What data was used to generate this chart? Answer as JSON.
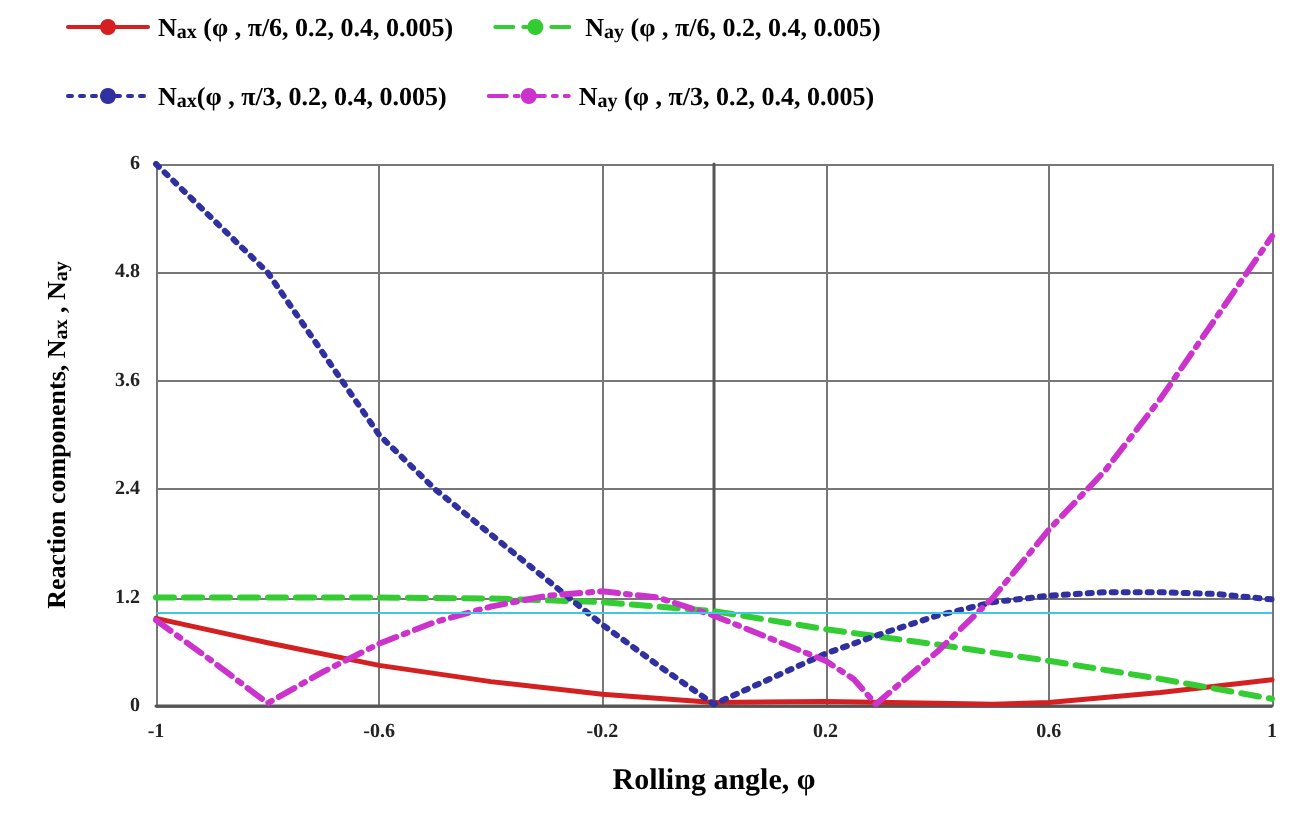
{
  "chart_data": {
    "type": "line",
    "xlabel": "Rolling angle, φ",
    "ylabel": "Reaction components, N$_{ax}$ , N$_{ay}$",
    "xlim": [
      -1,
      1
    ],
    "xticks": [
      -1,
      -0.6,
      -0.2,
      0.2,
      0.6,
      1
    ],
    "ylim": [
      0,
      6
    ],
    "yticks": [
      0,
      1.2,
      2.4,
      3.6,
      4.8,
      6
    ],
    "grid": true,
    "legend": "top",
    "marker": "none",
    "ref_lines": [
      {
        "axis": "y",
        "value": 1.03,
        "color": "#40c8e0"
      }
    ],
    "series": [
      {
        "name": "N$_{ax}$ (φ , π/6, 0.2, 0.4, 0.005)",
        "color": "#d42020",
        "line_style": "solid",
        "x": [
          -1,
          -0.8,
          -0.6,
          -0.4,
          -0.2,
          0,
          0.2,
          0.4,
          0.5,
          0.6,
          0.8,
          1
        ],
        "values": [
          0.97,
          0.7,
          0.45,
          0.27,
          0.13,
          0.04,
          0.05,
          0.03,
          0.02,
          0.04,
          0.15,
          0.29
        ]
      },
      {
        "name": "N$_{ay}$ (φ , π/6, 0.2, 0.4, 0.005)",
        "color": "#33cc33",
        "line_style": "dashed",
        "x": [
          -1,
          -0.6,
          -0.4,
          -0.2,
          0,
          0.2,
          0.4,
          0.6,
          0.8,
          1
        ],
        "values": [
          1.2,
          1.2,
          1.19,
          1.15,
          1.05,
          0.85,
          0.68,
          0.5,
          0.3,
          0.08
        ]
      },
      {
        "name": "N$_{ax}$(φ , π/3, 0.2, 0.4, 0.005)",
        "color": "#3030a0",
        "line_style": "dotted",
        "x": [
          -1,
          -0.9,
          -0.8,
          -0.7,
          -0.6,
          -0.5,
          -0.4,
          -0.3,
          -0.2,
          -0.1,
          0,
          0.1,
          0.2,
          0.3,
          0.4,
          0.5,
          0.6,
          0.7,
          0.8,
          0.9,
          1
        ],
        "values": [
          6,
          5.4,
          4.8,
          3.9,
          3.0,
          2.4,
          1.9,
          1.4,
          0.9,
          0.45,
          0.02,
          0.3,
          0.58,
          0.8,
          1.0,
          1.15,
          1.22,
          1.26,
          1.26,
          1.24,
          1.18
        ]
      },
      {
        "name": "N$_{ay}$ (φ , π/3, 0.2, 0.4, 0.005)",
        "color": "#cc33cc",
        "line_style": "dashdot",
        "x": [
          -1,
          -0.9,
          -0.8,
          -0.7,
          -0.6,
          -0.5,
          -0.4,
          -0.3,
          -0.2,
          -0.1,
          0,
          0.1,
          0.2,
          0.25,
          0.29,
          0.4,
          0.5,
          0.6,
          0.7,
          0.8,
          0.9,
          1
        ],
        "values": [
          0.95,
          0.5,
          0.03,
          0.38,
          0.69,
          0.93,
          1.1,
          1.22,
          1.27,
          1.2,
          1.0,
          0.75,
          0.5,
          0.3,
          0.02,
          0.6,
          1.2,
          1.95,
          2.6,
          3.4,
          4.3,
          5.2
        ]
      }
    ]
  }
}
